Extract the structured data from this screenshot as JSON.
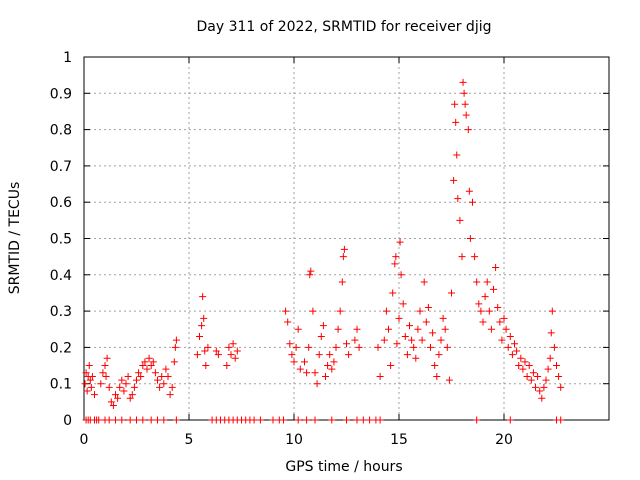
{
  "chart_data": {
    "type": "scatter",
    "title": "Day 311 of 2022, SRMTID for receiver djig",
    "xlabel": "GPS time / hours",
    "ylabel": "SRMTID / TECUs",
    "xlim": [
      0,
      25
    ],
    "ylim": [
      0,
      1
    ],
    "grid": true,
    "marker": "plus",
    "color": "#ff0000",
    "x_ticks": [
      0,
      5,
      10,
      15,
      20
    ],
    "x_tick_labels": [
      "0",
      "5",
      "10",
      "15",
      "20"
    ],
    "y_ticks": [
      0,
      0.1,
      0.2,
      0.3,
      0.4,
      0.5,
      0.6,
      0.7,
      0.8,
      0.9,
      1
    ],
    "y_tick_labels": [
      "0",
      "0.1",
      "0.2",
      "0.3",
      "0.4",
      "0.5",
      "0.6",
      "0.7",
      "0.8",
      "0.9",
      "1"
    ],
    "series": [
      {
        "name": "SRMTID",
        "points": [
          [
            0.05,
            0.1
          ],
          [
            0.1,
            0.13
          ],
          [
            0.15,
            0.08
          ],
          [
            0.2,
            0.12
          ],
          [
            0.25,
            0.15
          ],
          [
            0.3,
            0.11
          ],
          [
            0.35,
            0.09
          ],
          [
            0.4,
            0.12
          ],
          [
            0.5,
            0.07
          ],
          [
            0.8,
            0.1
          ],
          [
            0.9,
            0.13
          ],
          [
            1.0,
            0.15
          ],
          [
            1.05,
            0.12
          ],
          [
            1.1,
            0.17
          ],
          [
            1.2,
            0.09
          ],
          [
            1.3,
            0.05
          ],
          [
            1.4,
            0.04
          ],
          [
            1.5,
            0.07
          ],
          [
            1.6,
            0.06
          ],
          [
            1.7,
            0.09
          ],
          [
            1.8,
            0.11
          ],
          [
            1.9,
            0.08
          ],
          [
            2.0,
            0.1
          ],
          [
            2.1,
            0.12
          ],
          [
            2.2,
            0.06
          ],
          [
            2.3,
            0.07
          ],
          [
            2.4,
            0.09
          ],
          [
            2.5,
            0.11
          ],
          [
            2.6,
            0.13
          ],
          [
            2.7,
            0.12
          ],
          [
            2.8,
            0.15
          ],
          [
            2.9,
            0.16
          ],
          [
            3.0,
            0.14
          ],
          [
            3.1,
            0.17
          ],
          [
            3.2,
            0.15
          ],
          [
            3.3,
            0.16
          ],
          [
            3.4,
            0.13
          ],
          [
            3.5,
            0.11
          ],
          [
            3.6,
            0.09
          ],
          [
            3.7,
            0.12
          ],
          [
            3.8,
            0.1
          ],
          [
            3.9,
            0.14
          ],
          [
            4.0,
            0.12
          ],
          [
            4.1,
            0.07
          ],
          [
            4.2,
            0.09
          ],
          [
            4.3,
            0.16
          ],
          [
            4.35,
            0.2
          ],
          [
            4.4,
            0.22
          ],
          [
            5.4,
            0.18
          ],
          [
            5.5,
            0.23
          ],
          [
            5.6,
            0.26
          ],
          [
            5.65,
            0.34
          ],
          [
            5.7,
            0.28
          ],
          [
            5.75,
            0.19
          ],
          [
            5.8,
            0.15
          ],
          [
            5.9,
            0.2
          ],
          [
            6.3,
            0.19
          ],
          [
            6.4,
            0.18
          ],
          [
            6.8,
            0.15
          ],
          [
            6.9,
            0.2
          ],
          [
            7.0,
            0.18
          ],
          [
            7.1,
            0.21
          ],
          [
            7.2,
            0.17
          ],
          [
            7.3,
            0.19
          ],
          [
            9.6,
            0.3
          ],
          [
            9.7,
            0.27
          ],
          [
            9.8,
            0.21
          ],
          [
            9.9,
            0.18
          ],
          [
            10.0,
            0.16
          ],
          [
            10.1,
            0.2
          ],
          [
            10.2,
            0.25
          ],
          [
            10.3,
            0.14
          ],
          [
            10.5,
            0.16
          ],
          [
            10.6,
            0.13
          ],
          [
            10.7,
            0.2
          ],
          [
            10.75,
            0.4
          ],
          [
            10.8,
            0.41
          ],
          [
            10.9,
            0.3
          ],
          [
            11.0,
            0.13
          ],
          [
            11.1,
            0.1
          ],
          [
            11.2,
            0.18
          ],
          [
            11.3,
            0.23
          ],
          [
            11.4,
            0.26
          ],
          [
            11.5,
            0.12
          ],
          [
            11.6,
            0.15
          ],
          [
            11.7,
            0.18
          ],
          [
            11.8,
            0.14
          ],
          [
            11.9,
            0.16
          ],
          [
            12.0,
            0.2
          ],
          [
            12.1,
            0.25
          ],
          [
            12.2,
            0.3
          ],
          [
            12.3,
            0.38
          ],
          [
            12.35,
            0.45
          ],
          [
            12.4,
            0.47
          ],
          [
            12.5,
            0.21
          ],
          [
            12.6,
            0.18
          ],
          [
            12.9,
            0.22
          ],
          [
            13.0,
            0.25
          ],
          [
            13.1,
            0.2
          ],
          [
            14.0,
            0.2
          ],
          [
            14.1,
            0.12
          ],
          [
            14.3,
            0.22
          ],
          [
            14.4,
            0.3
          ],
          [
            14.5,
            0.25
          ],
          [
            14.6,
            0.15
          ],
          [
            14.7,
            0.35
          ],
          [
            14.8,
            0.43
          ],
          [
            14.85,
            0.45
          ],
          [
            14.9,
            0.21
          ],
          [
            15.0,
            0.28
          ],
          [
            15.05,
            0.49
          ],
          [
            15.1,
            0.4
          ],
          [
            15.2,
            0.32
          ],
          [
            15.3,
            0.23
          ],
          [
            15.4,
            0.18
          ],
          [
            15.5,
            0.26
          ],
          [
            15.6,
            0.22
          ],
          [
            15.7,
            0.2
          ],
          [
            15.8,
            0.17
          ],
          [
            15.9,
            0.25
          ],
          [
            16.0,
            0.3
          ],
          [
            16.1,
            0.22
          ],
          [
            16.2,
            0.38
          ],
          [
            16.3,
            0.27
          ],
          [
            16.4,
            0.31
          ],
          [
            16.5,
            0.2
          ],
          [
            16.6,
            0.24
          ],
          [
            16.7,
            0.15
          ],
          [
            16.8,
            0.12
          ],
          [
            16.9,
            0.18
          ],
          [
            17.0,
            0.22
          ],
          [
            17.1,
            0.28
          ],
          [
            17.2,
            0.25
          ],
          [
            17.3,
            0.2
          ],
          [
            17.4,
            0.11
          ],
          [
            17.5,
            0.35
          ],
          [
            17.6,
            0.66
          ],
          [
            17.65,
            0.87
          ],
          [
            17.7,
            0.82
          ],
          [
            17.75,
            0.73
          ],
          [
            17.8,
            0.61
          ],
          [
            17.9,
            0.55
          ],
          [
            18.0,
            0.45
          ],
          [
            18.05,
            0.93
          ],
          [
            18.1,
            0.9
          ],
          [
            18.15,
            0.87
          ],
          [
            18.2,
            0.84
          ],
          [
            18.3,
            0.8
          ],
          [
            18.35,
            0.63
          ],
          [
            18.4,
            0.5
          ],
          [
            18.5,
            0.6
          ],
          [
            18.6,
            0.45
          ],
          [
            18.7,
            0.38
          ],
          [
            18.8,
            0.32
          ],
          [
            18.9,
            0.3
          ],
          [
            19.0,
            0.27
          ],
          [
            19.1,
            0.34
          ],
          [
            19.2,
            0.38
          ],
          [
            19.3,
            0.3
          ],
          [
            19.4,
            0.25
          ],
          [
            19.5,
            0.36
          ],
          [
            19.6,
            0.42
          ],
          [
            19.7,
            0.31
          ],
          [
            19.8,
            0.27
          ],
          [
            19.9,
            0.22
          ],
          [
            20.0,
            0.28
          ],
          [
            20.1,
            0.25
          ],
          [
            20.2,
            0.2
          ],
          [
            20.3,
            0.23
          ],
          [
            20.4,
            0.18
          ],
          [
            20.5,
            0.21
          ],
          [
            20.6,
            0.19
          ],
          [
            20.7,
            0.15
          ],
          [
            20.8,
            0.17
          ],
          [
            20.9,
            0.14
          ],
          [
            21.0,
            0.16
          ],
          [
            21.1,
            0.12
          ],
          [
            21.2,
            0.15
          ],
          [
            21.3,
            0.11
          ],
          [
            21.4,
            0.13
          ],
          [
            21.5,
            0.09
          ],
          [
            21.6,
            0.12
          ],
          [
            21.7,
            0.08
          ],
          [
            21.8,
            0.06
          ],
          [
            21.9,
            0.09
          ],
          [
            22.0,
            0.11
          ],
          [
            22.1,
            0.14
          ],
          [
            22.2,
            0.17
          ],
          [
            22.25,
            0.24
          ],
          [
            22.3,
            0.3
          ],
          [
            22.4,
            0.2
          ],
          [
            22.5,
            0.15
          ],
          [
            22.6,
            0.12
          ],
          [
            22.7,
            0.09
          ]
        ],
        "zero_points": [
          0.1,
          0.2,
          0.3,
          0.5,
          0.6,
          0.7,
          1.0,
          1.2,
          1.5,
          1.8,
          2.2,
          2.5,
          2.8,
          3.2,
          3.5,
          3.8,
          4.4,
          6.1,
          6.3,
          6.5,
          6.7,
          6.9,
          7.1,
          7.3,
          7.5,
          7.7,
          7.9,
          8.1,
          8.4,
          9.0,
          9.3,
          9.5,
          10.2,
          10.6,
          11.0,
          11.8,
          12.5,
          13.0,
          13.3,
          13.6,
          13.9,
          14.1,
          18.7,
          20.3,
          22.5,
          22.7
        ]
      }
    ]
  }
}
